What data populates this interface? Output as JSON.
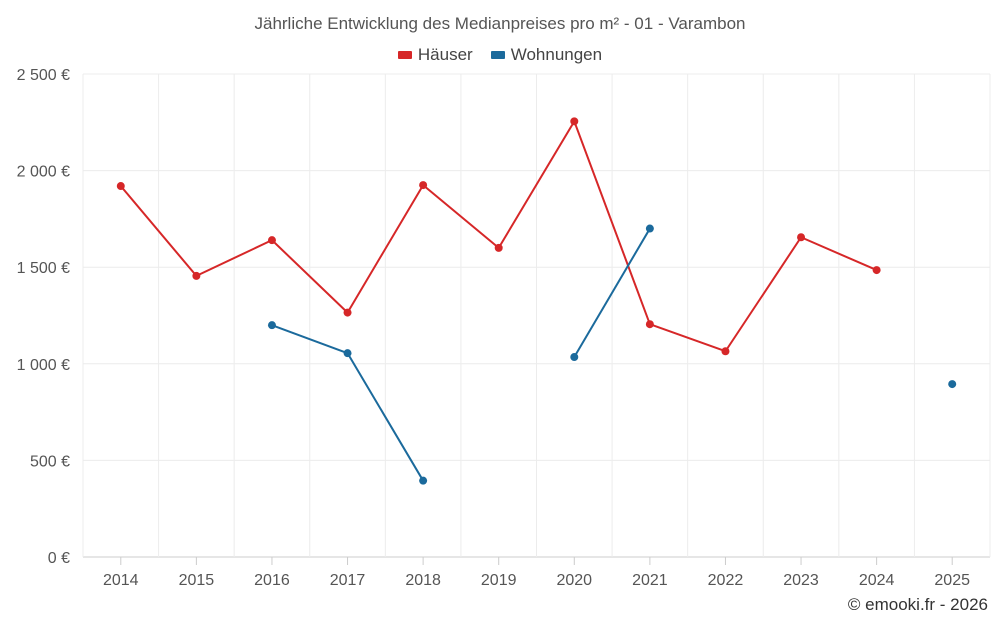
{
  "chart_data": {
    "type": "line",
    "title": "Jährliche Entwicklung des Medianpreises pro m² - 01 - Varambon",
    "categories": [
      "2014",
      "2015",
      "2016",
      "2017",
      "2018",
      "2019",
      "2020",
      "2021",
      "2022",
      "2023",
      "2024",
      "2025"
    ],
    "y_ticks": [
      "0 €",
      "500 €",
      "1 000 €",
      "1 500 €",
      "2 000 €",
      "2 500 €"
    ],
    "ylim": [
      0,
      2500
    ],
    "grid": true,
    "legend_position": "top-center",
    "series": [
      {
        "name": "Häuser",
        "color": "#d62728",
        "values": [
          1920,
          1455,
          1640,
          1265,
          1925,
          1600,
          2255,
          1205,
          1065,
          1655,
          1485,
          null
        ]
      },
      {
        "name": "Wohnungen",
        "color": "#1b6a9c",
        "values": [
          null,
          null,
          1200,
          1055,
          395,
          null,
          1035,
          1700,
          null,
          null,
          null,
          895
        ]
      }
    ]
  },
  "credits": "© emooki.fr - 2026"
}
